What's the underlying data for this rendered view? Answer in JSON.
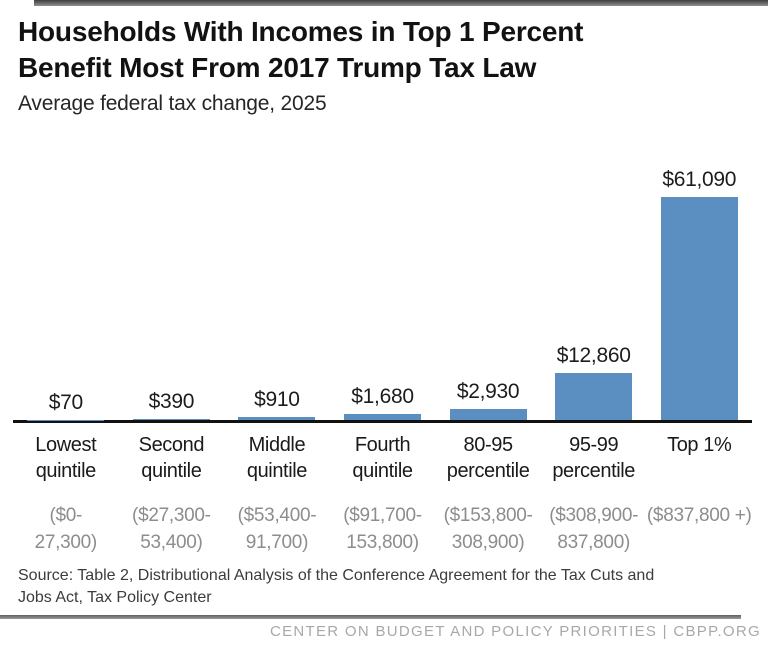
{
  "header": {
    "title_line1": "Households With Incomes in Top 1 Percent",
    "title_line2": "Benefit Most From 2017 Trump Tax Law",
    "subtitle": "Average federal tax change, 2025"
  },
  "chart_data": {
    "type": "bar",
    "title": "Households With Incomes in Top 1 Percent Benefit Most From 2017 Trump Tax Law",
    "subtitle": "Average federal tax change, 2025",
    "categories": [
      "Lowest quintile",
      "Second quintile",
      "Middle quintile",
      "Fourth quintile",
      "80-95 percentile",
      "95-99 percentile",
      "Top 1%"
    ],
    "category_lines": [
      [
        "Lowest",
        "quintile"
      ],
      [
        "Second",
        "quintile"
      ],
      [
        "Middle",
        "quintile"
      ],
      [
        "Fourth",
        "quintile"
      ],
      [
        "80-95",
        "percentile"
      ],
      [
        "95-99",
        "percentile"
      ],
      [
        "Top 1%"
      ]
    ],
    "income_range_lines": [
      [
        "($0-",
        "27,300)"
      ],
      [
        "($27,300-",
        "53,400)"
      ],
      [
        "($53,400-",
        "91,700)"
      ],
      [
        "($91,700-",
        "153,800)"
      ],
      [
        "($153,800-",
        "308,900)"
      ],
      [
        "($308,900-",
        "837,800)"
      ],
      [
        "($837,800 +)"
      ]
    ],
    "values": [
      70,
      390,
      910,
      1680,
      2930,
      12860,
      61090
    ],
    "value_labels": [
      "$70",
      "$390",
      "$910",
      "$1,680",
      "$2,930",
      "$12,860",
      "$61,090"
    ],
    "xlabel": "",
    "ylabel": "",
    "ylim": [
      0,
      61090
    ],
    "grid": false,
    "legend": "none",
    "bar_color": "#5b8ec1",
    "axis_color": "#111111"
  },
  "source": {
    "line1": "Source: Table 2, Distributional Analysis of the Conference Agreement for the Tax Cuts and",
    "line2": "Jobs Act, Tax Policy Center"
  },
  "footer": {
    "text": "CENTER ON BUDGET AND POLICY PRIORITIES | CBPP.ORG"
  }
}
